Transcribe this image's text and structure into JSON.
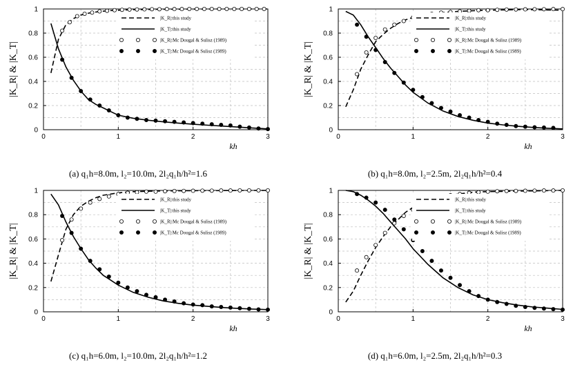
{
  "chart_data": [
    {
      "type": "line",
      "caption": "(a)  q₁h=8.0m,  l₂=10.0m,  2l₂q₁h/h²=1.6",
      "xlabel": "kh",
      "ylabel": "|K_R| & |K_T|",
      "xlim": [
        0,
        3
      ],
      "ylim": [
        0,
        1
      ],
      "xticks": [
        "0",
        "1",
        "2",
        "3"
      ],
      "yticks": [
        "0",
        "0.2",
        "0.4",
        "0.6",
        "0.8",
        "1"
      ],
      "grid": true,
      "legend_position": "top-right",
      "series": [
        {
          "name": "|K_R|:this study",
          "style": "dashed",
          "x": [
            0.1,
            0.2,
            0.3,
            0.4,
            0.5,
            0.6,
            0.7,
            0.8,
            0.9,
            1.0,
            1.2,
            1.5,
            2.0,
            2.5,
            3.0
          ],
          "y": [
            0.47,
            0.75,
            0.87,
            0.92,
            0.95,
            0.965,
            0.975,
            0.982,
            0.987,
            0.99,
            0.994,
            0.997,
            0.999,
            1.0,
            1.0
          ]
        },
        {
          "name": "|K_T|:this study",
          "style": "solid",
          "x": [
            0.1,
            0.2,
            0.3,
            0.4,
            0.5,
            0.6,
            0.7,
            0.8,
            0.9,
            1.0,
            1.2,
            1.4,
            1.6,
            1.8,
            2.0,
            2.2,
            2.4,
            2.6,
            2.8,
            3.0
          ],
          "y": [
            0.88,
            0.67,
            0.52,
            0.41,
            0.32,
            0.25,
            0.21,
            0.18,
            0.15,
            0.12,
            0.095,
            0.078,
            0.065,
            0.055,
            0.045,
            0.037,
            0.03,
            0.022,
            0.014,
            0.007
          ]
        },
        {
          "name": "|K_R|:Mc Dougal & Sulisz (1989)",
          "style": "open",
          "x": [
            0.25,
            0.35,
            0.45,
            0.55,
            0.65,
            0.75,
            0.85,
            0.95,
            1.05,
            1.15,
            1.25,
            1.35,
            1.45,
            1.55,
            1.65,
            1.75,
            1.85,
            1.95,
            2.05,
            2.15,
            2.25,
            2.35,
            2.45,
            2.55,
            2.65,
            2.75,
            2.85,
            2.95
          ],
          "y": [
            0.82,
            0.89,
            0.94,
            0.96,
            0.97,
            0.98,
            0.985,
            0.99,
            0.993,
            0.995,
            0.996,
            0.997,
            0.998,
            0.998,
            0.999,
            0.999,
            0.999,
            1.0,
            1.0,
            1.0,
            1.0,
            1.0,
            1.0,
            1.0,
            1.0,
            1.0,
            1.0,
            1.0
          ]
        },
        {
          "name": "|K_T|:Mc Dougal & Sulisz (1989)",
          "style": "filled",
          "x": [
            0.25,
            0.375,
            0.5,
            0.625,
            0.75,
            0.875,
            1.0,
            1.125,
            1.25,
            1.375,
            1.5,
            1.625,
            1.75,
            1.875,
            2.0,
            2.125,
            2.25,
            2.375,
            2.5,
            2.625,
            2.75,
            2.875,
            3.0
          ],
          "y": [
            0.58,
            0.43,
            0.32,
            0.25,
            0.2,
            0.16,
            0.12,
            0.1,
            0.09,
            0.08,
            0.075,
            0.07,
            0.065,
            0.06,
            0.055,
            0.05,
            0.045,
            0.04,
            0.035,
            0.025,
            0.018,
            0.01,
            0.005
          ]
        }
      ]
    },
    {
      "type": "line",
      "caption": "(b)  q₁h=8.0m,  l₂=2.5m,  2l₂q₁h/h²=0.4",
      "xlabel": "kh",
      "ylabel": "|K_R| & |K_T|",
      "xlim": [
        0,
        3
      ],
      "ylim": [
        0,
        1
      ],
      "xticks": [
        "0",
        "1",
        "2",
        "3"
      ],
      "yticks": [
        "0",
        "0.2",
        "0.4",
        "0.6",
        "0.8",
        "1"
      ],
      "grid": true,
      "legend_position": "top-right",
      "series": [
        {
          "name": "|K_R|:this study",
          "style": "dashed",
          "x": [
            0.1,
            0.2,
            0.3,
            0.4,
            0.5,
            0.6,
            0.7,
            0.8,
            0.9,
            1.0,
            1.2,
            1.4,
            1.6,
            1.8,
            2.0,
            2.5,
            3.0
          ],
          "y": [
            0.19,
            0.33,
            0.5,
            0.62,
            0.73,
            0.79,
            0.84,
            0.88,
            0.91,
            0.93,
            0.955,
            0.97,
            0.98,
            0.985,
            0.99,
            0.995,
            0.99
          ]
        },
        {
          "name": "|K_T|:this study",
          "style": "solid",
          "x": [
            0.1,
            0.2,
            0.3,
            0.4,
            0.5,
            0.6,
            0.7,
            0.8,
            0.9,
            1.0,
            1.2,
            1.4,
            1.6,
            1.8,
            2.0,
            2.2,
            2.4,
            2.6,
            2.8,
            3.0
          ],
          "y": [
            0.98,
            0.95,
            0.87,
            0.77,
            0.68,
            0.59,
            0.51,
            0.44,
            0.37,
            0.31,
            0.22,
            0.155,
            0.11,
            0.078,
            0.055,
            0.04,
            0.028,
            0.019,
            0.012,
            0.007
          ]
        },
        {
          "name": "|K_R|:Mc Dougal & Sulisz (1989)",
          "style": "open",
          "x": [
            0.25,
            0.375,
            0.5,
            0.625,
            0.75,
            0.875,
            1.0,
            1.125,
            1.25,
            1.375,
            1.5,
            1.625,
            1.75,
            1.875,
            2.0,
            2.125,
            2.25,
            2.375,
            2.5,
            2.625,
            2.75,
            2.875,
            3.0
          ],
          "y": [
            0.46,
            0.64,
            0.76,
            0.83,
            0.87,
            0.9,
            0.93,
            0.95,
            0.96,
            0.97,
            0.975,
            0.98,
            0.985,
            0.99,
            0.99,
            0.993,
            0.995,
            0.996,
            0.997,
            0.998,
            0.998,
            0.999,
            0.999
          ]
        },
        {
          "name": "|K_T|:Mc Dougal & Sulisz (1989)",
          "style": "filled",
          "x": [
            0.25,
            0.375,
            0.5,
            0.625,
            0.75,
            0.875,
            1.0,
            1.125,
            1.25,
            1.375,
            1.5,
            1.625,
            1.75,
            1.875,
            2.0,
            2.125,
            2.25,
            2.375,
            2.5,
            2.625,
            2.75,
            2.875
          ],
          "y": [
            0.87,
            0.77,
            0.66,
            0.56,
            0.47,
            0.39,
            0.33,
            0.27,
            0.22,
            0.18,
            0.15,
            0.12,
            0.1,
            0.08,
            0.065,
            0.05,
            0.04,
            0.03,
            0.025,
            0.02,
            0.018,
            0.015
          ]
        }
      ]
    },
    {
      "type": "line",
      "caption": "(c)  q₁h=6.0m,  l₂=10.0m,  2l₂q₁h/h²=1.2",
      "xlabel": "kh",
      "ylabel": "|K_R| & |K_T|",
      "xlim": [
        0,
        3
      ],
      "ylim": [
        0,
        1
      ],
      "xticks": [
        "0",
        "1",
        "2",
        "3"
      ],
      "yticks": [
        "0",
        "0.2",
        "0.4",
        "0.6",
        "0.8",
        "1"
      ],
      "grid": true,
      "legend_position": "top-right",
      "series": [
        {
          "name": "|K_R|:this study",
          "style": "dashed",
          "x": [
            0.1,
            0.2,
            0.3,
            0.4,
            0.5,
            0.6,
            0.7,
            0.8,
            0.9,
            1.0,
            1.2,
            1.5,
            2.0,
            2.5,
            3.0
          ],
          "y": [
            0.25,
            0.47,
            0.68,
            0.8,
            0.87,
            0.91,
            0.94,
            0.96,
            0.97,
            0.98,
            0.99,
            0.995,
            0.998,
            0.999,
            1.0
          ]
        },
        {
          "name": "|K_T|:this study",
          "style": "solid",
          "x": [
            0.1,
            0.2,
            0.3,
            0.4,
            0.5,
            0.6,
            0.7,
            0.8,
            0.9,
            1.0,
            1.2,
            1.4,
            1.6,
            1.8,
            2.0,
            2.2,
            2.4,
            2.6,
            2.8,
            3.0
          ],
          "y": [
            0.97,
            0.88,
            0.74,
            0.62,
            0.52,
            0.43,
            0.36,
            0.3,
            0.26,
            0.22,
            0.16,
            0.12,
            0.09,
            0.07,
            0.055,
            0.045,
            0.035,
            0.028,
            0.022,
            0.018
          ]
        },
        {
          "name": "|K_R|:Mc Dougal & Sulisz (1989)",
          "style": "open",
          "x": [
            0.25,
            0.375,
            0.5,
            0.625,
            0.75,
            0.875,
            1.0,
            1.125,
            1.25,
            1.375,
            1.5,
            1.625,
            1.75,
            1.875,
            2.0,
            2.125,
            2.25,
            2.375,
            2.5,
            2.625,
            2.75,
            2.875,
            3.0
          ],
          "y": [
            0.59,
            0.76,
            0.85,
            0.9,
            0.93,
            0.95,
            0.97,
            0.98,
            0.985,
            0.99,
            0.99,
            0.993,
            0.995,
            0.996,
            0.997,
            0.998,
            0.998,
            0.999,
            0.999,
            1.0,
            1.0,
            1.0,
            1.0
          ]
        },
        {
          "name": "|K_T|:Mc Dougal & Sulisz (1989)",
          "style": "filled",
          "x": [
            0.25,
            0.375,
            0.5,
            0.625,
            0.75,
            0.875,
            1.0,
            1.125,
            1.25,
            1.375,
            1.5,
            1.625,
            1.75,
            1.875,
            2.0,
            2.125,
            2.25,
            2.375,
            2.5,
            2.625,
            2.75,
            2.875,
            3.0
          ],
          "y": [
            0.79,
            0.65,
            0.52,
            0.42,
            0.35,
            0.29,
            0.24,
            0.2,
            0.17,
            0.14,
            0.12,
            0.1,
            0.085,
            0.07,
            0.06,
            0.055,
            0.045,
            0.04,
            0.035,
            0.03,
            0.025,
            0.02,
            0.018
          ]
        }
      ]
    },
    {
      "type": "line",
      "caption": "(d)  q₁h=6.0m,  l₂=2.5m,  2l₂q₁h/h²=0.3",
      "xlabel": "kh",
      "ylabel": "|K_R| & |K_T|",
      "xlim": [
        0,
        3
      ],
      "ylim": [
        0,
        1
      ],
      "xticks": [
        "0",
        "1",
        "2",
        "3"
      ],
      "yticks": [
        "0",
        "0.2",
        "0.4",
        "0.6",
        "0.8",
        "1"
      ],
      "grid": true,
      "legend_position": "top-right",
      "series": [
        {
          "name": "|K_R|:this study",
          "style": "dashed",
          "x": [
            0.1,
            0.2,
            0.3,
            0.4,
            0.5,
            0.6,
            0.7,
            0.8,
            0.9,
            1.0,
            1.2,
            1.4,
            1.6,
            1.8,
            2.0,
            2.5,
            3.0
          ],
          "y": [
            0.08,
            0.17,
            0.3,
            0.42,
            0.53,
            0.62,
            0.7,
            0.76,
            0.82,
            0.86,
            0.92,
            0.95,
            0.97,
            0.985,
            0.99,
            0.995,
            1.0
          ]
        },
        {
          "name": "|K_T|:this study",
          "style": "solid",
          "x": [
            0.1,
            0.2,
            0.3,
            0.4,
            0.5,
            0.6,
            0.7,
            0.8,
            0.9,
            1.0,
            1.2,
            1.4,
            1.6,
            1.8,
            2.0,
            2.2,
            2.4,
            2.6,
            2.8,
            3.0
          ],
          "y": [
            1.0,
            0.99,
            0.96,
            0.92,
            0.87,
            0.81,
            0.74,
            0.67,
            0.6,
            0.52,
            0.39,
            0.28,
            0.2,
            0.14,
            0.1,
            0.075,
            0.055,
            0.04,
            0.03,
            0.02
          ]
        },
        {
          "name": "|K_R|:Mc Dougal & Sulisz (1989)",
          "style": "open",
          "x": [
            0.25,
            0.375,
            0.5,
            0.625,
            0.75,
            0.875,
            1.0,
            1.125,
            1.25,
            1.375,
            1.5,
            1.625,
            1.75,
            1.875,
            2.0,
            2.125,
            2.25,
            2.375,
            2.5,
            2.625,
            2.75,
            2.875,
            3.0
          ],
          "y": [
            0.34,
            0.45,
            0.55,
            0.65,
            0.73,
            0.79,
            0.84,
            0.88,
            0.91,
            0.94,
            0.96,
            0.97,
            0.98,
            0.985,
            0.99,
            0.993,
            0.995,
            0.996,
            0.997,
            0.998,
            0.999,
            0.999,
            1.0
          ]
        },
        {
          "name": "|K_T|:Mc Dougal & Sulisz (1989)",
          "style": "filled",
          "x": [
            0.25,
            0.375,
            0.5,
            0.625,
            0.75,
            0.875,
            1.0,
            1.125,
            1.25,
            1.375,
            1.5,
            1.625,
            1.75,
            1.875,
            2.0,
            2.125,
            2.25,
            2.375,
            2.5,
            2.625,
            2.75,
            2.875,
            3.0
          ],
          "y": [
            0.97,
            0.94,
            0.9,
            0.84,
            0.76,
            0.68,
            0.59,
            0.5,
            0.42,
            0.34,
            0.28,
            0.22,
            0.17,
            0.13,
            0.1,
            0.08,
            0.065,
            0.05,
            0.04,
            0.033,
            0.027,
            0.022,
            0.018
          ]
        }
      ]
    }
  ]
}
